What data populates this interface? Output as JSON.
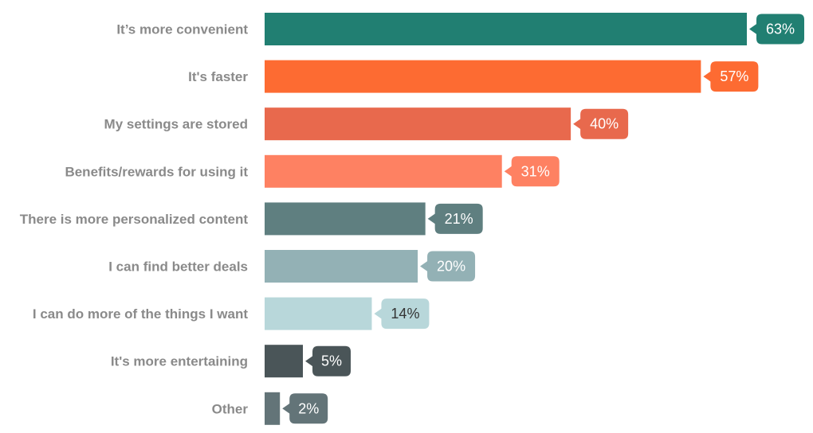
{
  "chart_data": {
    "type": "bar",
    "orientation": "horizontal",
    "title": "",
    "xlabel": "",
    "ylabel": "",
    "grid": false,
    "legend": "none",
    "xlim": [
      0,
      63
    ],
    "categories": [
      "It’s more convenient",
      "It's faster",
      "My settings are stored",
      "Benefits/rewards for using it",
      "There is more personalized content",
      "I can find better deals",
      "I can do more of the things I want",
      "It's more entertaining",
      "Other"
    ],
    "values": [
      63,
      57,
      40,
      31,
      21,
      20,
      14,
      5,
      2
    ],
    "value_labels": [
      "63%",
      "57%",
      "40%",
      "31%",
      "21%",
      "20%",
      "14%",
      "5%",
      "2%"
    ],
    "colors": [
      "#217f72",
      "#fd6b32",
      "#e8694d",
      "#fe8162",
      "#5f7f80",
      "#93b1b5",
      "#b8d7da",
      "#4a5558",
      "#637478"
    ],
    "label_text_colors": [
      "#ffffff",
      "#ffffff",
      "#ffffff",
      "#ffffff",
      "#ffffff",
      "#ffffff",
      "#333333",
      "#ffffff",
      "#ffffff"
    ]
  }
}
